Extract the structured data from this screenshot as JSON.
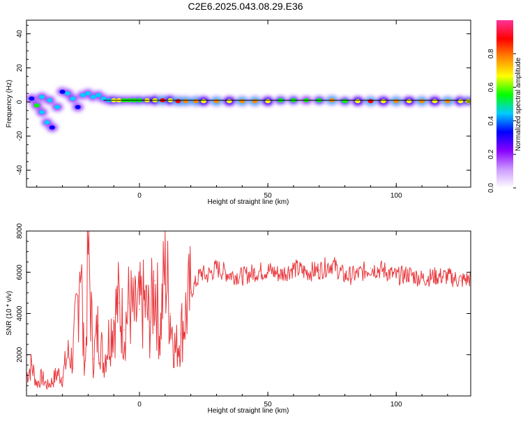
{
  "figure": {
    "title": "C2E6.2025.043.08.29.E36"
  },
  "chart_data": [
    {
      "type": "heatmap",
      "xlabel": "Height of straight line (km)",
      "ylabel": "Frequency (Hz)",
      "xlim": [
        -44,
        129
      ],
      "ylim": [
        -50,
        48
      ],
      "x_ticks": [
        "0",
        "50",
        "100"
      ],
      "y_ticks": [
        "40",
        "20",
        "0",
        "-20",
        "-40"
      ],
      "colorbar": {
        "label": "Normalized spectral amplitude",
        "range": [
          0.0,
          1.0
        ],
        "ticks": [
          "0.0",
          "0.2",
          "0.4",
          "0.6",
          "0.8"
        ],
        "colors": [
          "#ffffff",
          "#cc99ff",
          "#8800ff",
          "#0000ff",
          "#00ccff",
          "#00ff00",
          "#ffff00",
          "#ff8800",
          "#ff0000",
          "#ff3399"
        ]
      },
      "reference_line_hz": 1,
      "blobs": [
        {
          "x": -42,
          "y": 2,
          "amp": 0.35
        },
        {
          "x": -40,
          "y": -2,
          "amp": 0.5
        },
        {
          "x": -38,
          "y": -6,
          "amp": 0.45
        },
        {
          "x": -36,
          "y": -12,
          "amp": 0.4
        },
        {
          "x": -34,
          "y": -15,
          "amp": 0.35
        },
        {
          "x": -38,
          "y": 3,
          "amp": 0.4
        },
        {
          "x": -35,
          "y": 1,
          "amp": 0.45
        },
        {
          "x": -32,
          "y": -3,
          "amp": 0.4
        },
        {
          "x": -30,
          "y": 6,
          "amp": 0.35
        },
        {
          "x": -28,
          "y": 5,
          "amp": 0.45
        },
        {
          "x": -26,
          "y": 2,
          "amp": 0.4
        },
        {
          "x": -24,
          "y": -3,
          "amp": 0.35
        },
        {
          "x": -22,
          "y": 4,
          "amp": 0.45
        },
        {
          "x": -20,
          "y": 5,
          "amp": 0.45
        },
        {
          "x": -18,
          "y": 3,
          "amp": 0.45
        },
        {
          "x": -16,
          "y": 4,
          "amp": 0.4
        },
        {
          "x": -14,
          "y": 2,
          "amp": 0.45
        },
        {
          "x": -12,
          "y": 1,
          "amp": 0.45
        },
        {
          "x": -10,
          "y": 1,
          "amp": 0.7
        },
        {
          "x": -8,
          "y": 1,
          "amp": 0.65
        },
        {
          "x": -6,
          "y": 1,
          "amp": 0.55
        },
        {
          "x": -4,
          "y": 1,
          "amp": 0.5
        },
        {
          "x": -2,
          "y": 1,
          "amp": 0.55
        },
        {
          "x": 0,
          "y": 1,
          "amp": 0.6
        },
        {
          "x": 3,
          "y": 1,
          "amp": 0.65
        },
        {
          "x": 6,
          "y": 1,
          "amp": 0.7
        },
        {
          "x": 9,
          "y": 1,
          "amp": 0.85
        },
        {
          "x": 12,
          "y": 1,
          "amp": 0.7
        },
        {
          "x": 15,
          "y": 0.5,
          "amp": 0.9
        },
        {
          "x": 18,
          "y": 0.5,
          "amp": 0.8
        },
        {
          "x": 22,
          "y": 0.5,
          "amp": 0.75
        },
        {
          "x": 25,
          "y": 0.5,
          "amp": 0.7
        },
        {
          "x": 30,
          "y": 0.5,
          "amp": 0.75
        },
        {
          "x": 35,
          "y": 0.5,
          "amp": 0.7
        },
        {
          "x": 40,
          "y": 0.5,
          "amp": 0.8
        },
        {
          "x": 45,
          "y": 0.5,
          "amp": 0.75
        },
        {
          "x": 50,
          "y": 0.5,
          "amp": 0.7
        },
        {
          "x": 55,
          "y": 1,
          "amp": 0.6
        },
        {
          "x": 60,
          "y": 1,
          "amp": 0.55
        },
        {
          "x": 65,
          "y": 1,
          "amp": 0.5
        },
        {
          "x": 70,
          "y": 1,
          "amp": 0.55
        },
        {
          "x": 75,
          "y": 1,
          "amp": 0.8
        },
        {
          "x": 80,
          "y": 0.5,
          "amp": 0.6
        },
        {
          "x": 85,
          "y": 0.5,
          "amp": 0.7
        },
        {
          "x": 90,
          "y": 0.5,
          "amp": 0.85
        },
        {
          "x": 95,
          "y": 0.5,
          "amp": 0.7
        },
        {
          "x": 100,
          "y": 0.5,
          "amp": 0.75
        },
        {
          "x": 105,
          "y": 0.5,
          "amp": 0.7
        },
        {
          "x": 110,
          "y": 0.5,
          "amp": 0.75
        },
        {
          "x": 115,
          "y": 0.5,
          "amp": 0.7
        },
        {
          "x": 120,
          "y": 0.5,
          "amp": 0.75
        },
        {
          "x": 125,
          "y": 0.5,
          "amp": 0.7
        },
        {
          "x": 128,
          "y": 0.5,
          "amp": 0.65
        }
      ]
    },
    {
      "type": "line",
      "xlabel": "Height of straight line (km)",
      "ylabel": "SNR (10 * v/v)",
      "xlim": [
        -44,
        129
      ],
      "ylim": [
        0,
        8000
      ],
      "x_ticks": [
        "0",
        "50",
        "100"
      ],
      "y_ticks": [
        "8000",
        "6000",
        "4000",
        "2000"
      ],
      "color": "#e8383d",
      "series": [
        {
          "x": [
            -44,
            -42,
            -40,
            -38,
            -36,
            -34,
            -32,
            -30,
            -28,
            -26,
            -24,
            -23,
            -22,
            -21,
            -20,
            -18,
            -16,
            -14,
            -12,
            -10,
            -8,
            -6,
            -4,
            -2,
            0,
            2,
            4,
            6,
            8,
            10,
            12,
            14,
            16,
            18,
            20,
            22,
            24,
            26,
            28,
            30,
            35,
            40,
            45,
            50,
            55,
            60,
            65,
            70,
            75,
            80,
            85,
            90,
            95,
            100,
            105,
            110,
            115,
            120,
            125,
            129
          ],
          "y": [
            1000,
            1500,
            600,
            900,
            500,
            700,
            1100,
            900,
            2000,
            1800,
            4600,
            8000,
            2600,
            1700,
            7200,
            1800,
            3400,
            1600,
            2800,
            3800,
            4500,
            3200,
            4500,
            3800,
            4200,
            4400,
            3600,
            5600,
            3000,
            6500,
            4000,
            2200,
            3000,
            4000,
            5000,
            5500,
            6000,
            5800,
            6000,
            6200,
            5900,
            5800,
            6000,
            6100,
            5900,
            6200,
            6000,
            6100,
            6400,
            5800,
            5900,
            6200,
            6100,
            5800,
            5900,
            5700,
            5800,
            5800,
            5600,
            5700
          ]
        }
      ]
    }
  ]
}
